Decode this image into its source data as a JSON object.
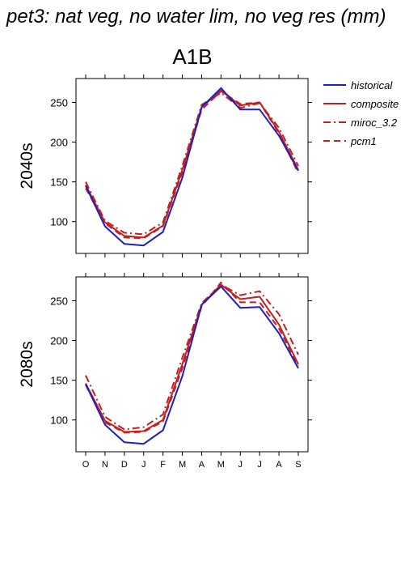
{
  "title": "pet3: nat veg, no water lim, no veg res (mm)",
  "scenario": "A1B",
  "colors": {
    "historical": "#1f1fbf",
    "projection": "#c41e1e"
  },
  "chart_data": [
    {
      "type": "line",
      "row_label": "2040s",
      "categories": [
        "O",
        "N",
        "D",
        "J",
        "F",
        "M",
        "A",
        "M",
        "J",
        "J",
        "A",
        "S"
      ],
      "ylim": [
        60,
        280
      ],
      "yticks": [
        100,
        150,
        200,
        250
      ],
      "grid": false,
      "legend": "right",
      "series": [
        {
          "name": "historical",
          "style": "solid",
          "color": "#1f1fbf",
          "values": [
            145,
            94,
            72,
            70,
            87,
            155,
            244,
            268,
            241,
            241,
            208,
            164
          ]
        },
        {
          "name": "composite",
          "style": "solid",
          "color": "#c41e1e",
          "values": [
            146,
            99,
            82,
            80,
            95,
            165,
            244,
            265,
            246,
            250,
            213,
            165
          ]
        },
        {
          "name": "miroc_3.2",
          "style": "dashdot",
          "color": "#c41e1e",
          "values": [
            150,
            101,
            86,
            84,
            99,
            170,
            247,
            262,
            243,
            249,
            218,
            170
          ]
        },
        {
          "name": "pcm1",
          "style": "dashed",
          "color": "#c41e1e",
          "values": [
            142,
            98,
            80,
            79,
            94,
            162,
            241,
            264,
            248,
            250,
            211,
            161
          ]
        }
      ]
    },
    {
      "type": "line",
      "row_label": "2080s",
      "categories": [
        "O",
        "N",
        "D",
        "J",
        "F",
        "M",
        "A",
        "M",
        "J",
        "J",
        "A",
        "S"
      ],
      "ylim": [
        60,
        280
      ],
      "yticks": [
        100,
        150,
        200,
        250
      ],
      "grid": false,
      "series": [
        {
          "name": "historical",
          "style": "solid",
          "color": "#1f1fbf",
          "values": [
            145,
            94,
            72,
            70,
            87,
            155,
            245,
            268,
            241,
            242,
            209,
            165
          ]
        },
        {
          "name": "composite",
          "style": "solid",
          "color": "#c41e1e",
          "values": [
            146,
            99,
            85,
            86,
            100,
            170,
            245,
            270,
            252,
            255,
            220,
            170
          ]
        },
        {
          "name": "miroc_3.2",
          "style": "dashdot",
          "color": "#c41e1e",
          "values": [
            156,
            104,
            88,
            91,
            107,
            178,
            247,
            270,
            257,
            262,
            233,
            182
          ]
        },
        {
          "name": "pcm1",
          "style": "dashed",
          "color": "#c41e1e",
          "values": [
            144,
            97,
            84,
            85,
            98,
            165,
            243,
            273,
            248,
            248,
            215,
            168
          ]
        }
      ]
    }
  ]
}
